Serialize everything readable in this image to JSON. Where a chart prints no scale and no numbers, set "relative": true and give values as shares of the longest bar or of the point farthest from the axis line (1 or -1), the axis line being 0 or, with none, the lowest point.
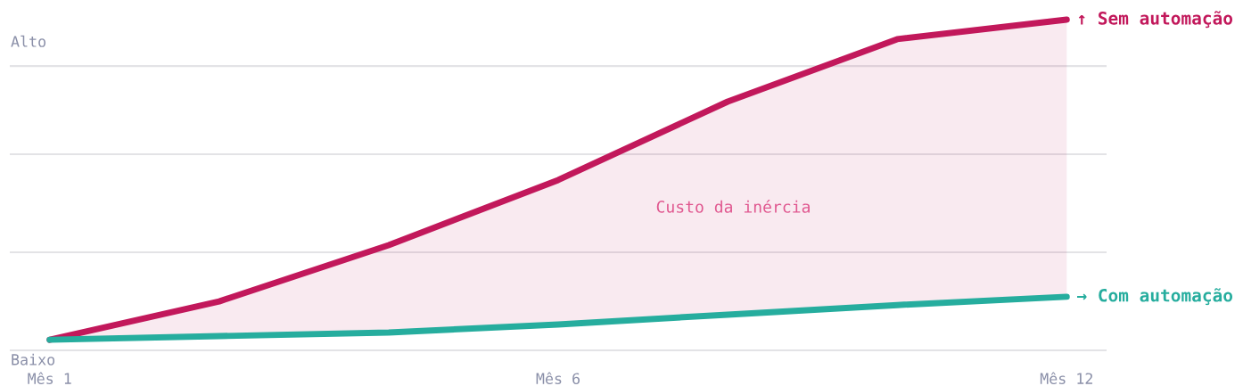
{
  "chart_data": {
    "type": "line",
    "relative": true,
    "categories": [
      "Mês 1",
      null,
      null,
      "Mês 6",
      null,
      null,
      "Mês 12"
    ],
    "series": [
      {
        "name": "↑ Sem automação",
        "color": "#c2185b",
        "values": [
          0.032,
          0.148,
          0.318,
          0.515,
          0.752,
          0.941,
          1
        ],
        "lower": [
          0.032,
          0.043,
          0.054,
          0.078,
          0.108,
          0.137,
          0.162
        ],
        "upper": [
          0.032,
          0.148,
          0.318,
          0.515,
          0.752,
          0.941,
          1
        ]
      },
      {
        "name": "→ Com automação",
        "color": "#26ad9e",
        "values": [
          0.032,
          0.043,
          0.054,
          0.078,
          0.108,
          0.137,
          0.162
        ]
      }
    ],
    "annotations": [
      "Alto",
      "Baixo",
      "Custo da inércia"
    ],
    "grid": "y",
    "legend": false,
    "marker": "none",
    "line_style": "solid"
  }
}
